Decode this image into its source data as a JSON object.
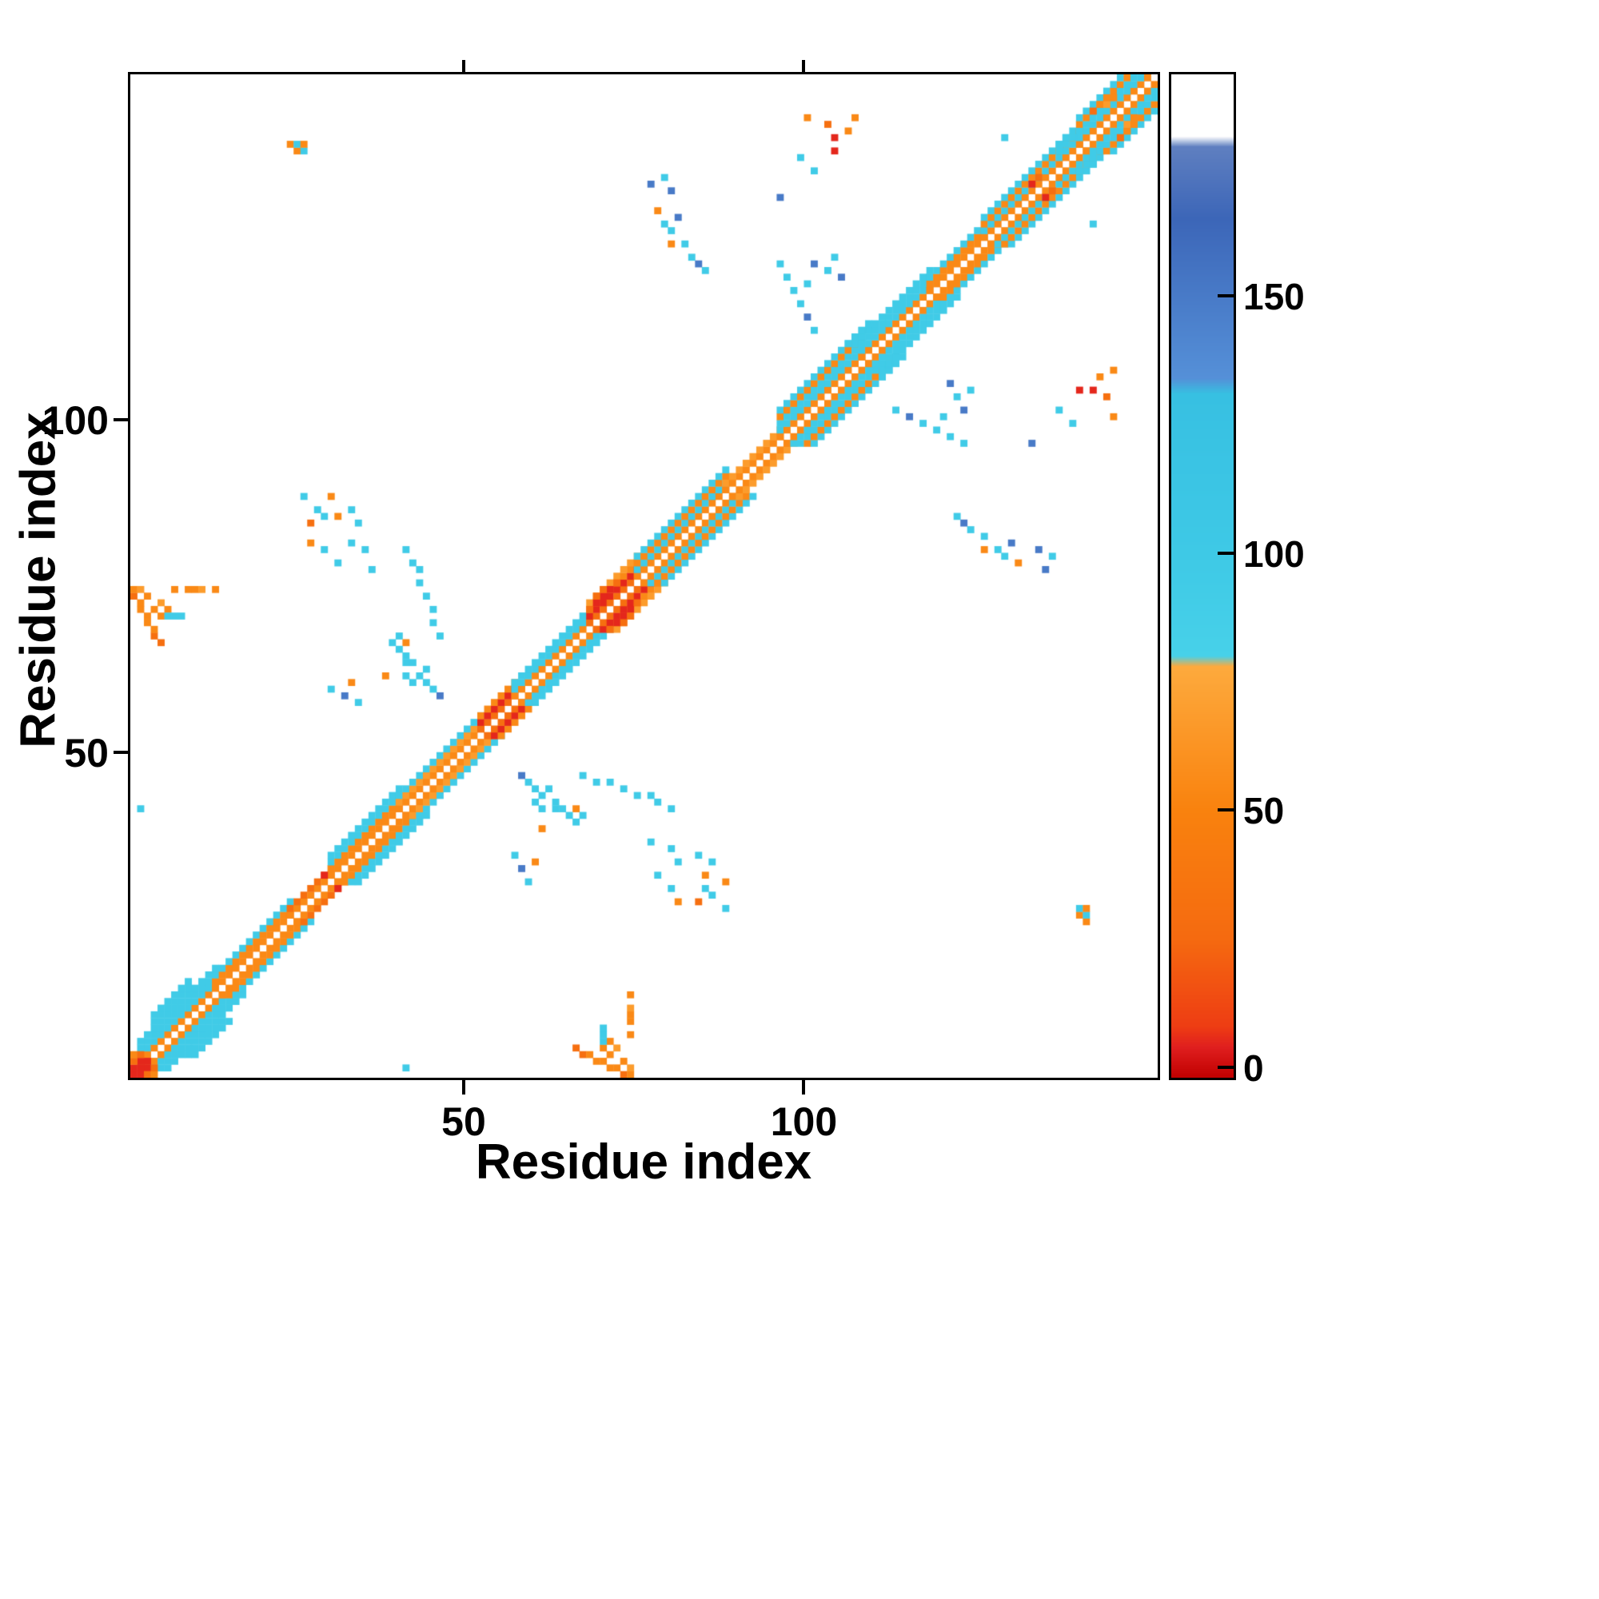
{
  "chart_data": {
    "type": "heatmap",
    "title": "",
    "xlabel": "Residue index",
    "ylabel": "Residue index",
    "x_range": [
      1,
      152
    ],
    "y_range": [
      1,
      152
    ],
    "x_ticks": [
      50,
      100
    ],
    "y_ticks": [
      50,
      100
    ],
    "n_residues": 151,
    "symmetric": true,
    "grid": false,
    "legend": "colorbar-right",
    "colorbar": {
      "ticks": [
        0,
        50,
        100,
        150
      ],
      "range": [
        -2,
        193
      ],
      "stops": [
        [
          -2,
          "#c00000"
        ],
        [
          4,
          "#e01f1f"
        ],
        [
          8,
          "#ee3d13"
        ],
        [
          25,
          "#f56a10"
        ],
        [
          50,
          "#f9820e"
        ],
        [
          78,
          "#fdaa3d"
        ],
        [
          80,
          "#47d1e9"
        ],
        [
          100,
          "#3ec9e6"
        ],
        [
          131,
          "#37c0e2"
        ],
        [
          134,
          "#5590d8"
        ],
        [
          165,
          "#3c66b8"
        ],
        [
          179,
          "#5f7fc0"
        ],
        [
          181,
          "#ffffff"
        ],
        [
          193,
          "#ffffff"
        ]
      ]
    },
    "diagonal_segments": [
      {
        "from": 2,
        "to": 13,
        "bands": [
          [
            1,
            55
          ],
          [
            2,
            95
          ],
          [
            3,
            95
          ],
          [
            4,
            95
          ]
        ]
      },
      {
        "from": 4,
        "to": 9,
        "bands": [
          [
            5,
            95
          ],
          [
            6,
            95
          ]
        ]
      },
      {
        "from": 13,
        "to": 24,
        "bands": [
          [
            1,
            55
          ],
          [
            2,
            55
          ],
          [
            3,
            95
          ]
        ]
      },
      {
        "from": 24,
        "to": 30,
        "bands": [
          [
            1,
            55
          ],
          [
            2,
            30
          ]
        ]
      },
      {
        "from": 30,
        "to": 40,
        "bands": [
          [
            1,
            55
          ],
          [
            2,
            55
          ],
          [
            3,
            95
          ],
          [
            4,
            95
          ]
        ]
      },
      {
        "from": 40,
        "to": 52,
        "bands": [
          [
            1,
            55
          ],
          [
            2,
            68
          ],
          [
            3,
            95
          ]
        ]
      },
      {
        "from": 52,
        "to": 57,
        "bands": [
          [
            1,
            30
          ],
          [
            2,
            5
          ],
          [
            3,
            55
          ]
        ]
      },
      {
        "from": 57,
        "to": 68,
        "bands": [
          [
            1,
            55
          ],
          [
            2,
            95
          ],
          [
            3,
            95
          ]
        ]
      },
      {
        "from": 68,
        "to": 75,
        "bands": [
          [
            1,
            30
          ],
          [
            2,
            5
          ],
          [
            3,
            55
          ],
          [
            4,
            68
          ]
        ]
      },
      {
        "from": 75,
        "to": 88,
        "bands": [
          [
            1,
            55
          ],
          [
            2,
            95
          ],
          [
            3,
            55
          ],
          [
            4,
            95
          ]
        ]
      },
      {
        "from": 88,
        "to": 96,
        "bands": [
          [
            1,
            55
          ],
          [
            2,
            68
          ]
        ]
      },
      {
        "from": 96,
        "to": 108,
        "bands": [
          [
            1,
            55
          ],
          [
            2,
            95
          ],
          [
            3,
            95
          ],
          [
            4,
            55
          ],
          [
            5,
            95
          ]
        ]
      },
      {
        "from": 108,
        "to": 118,
        "bands": [
          [
            1,
            55
          ],
          [
            2,
            95
          ],
          [
            3,
            95
          ],
          [
            4,
            95
          ]
        ]
      },
      {
        "from": 118,
        "to": 126,
        "bands": [
          [
            1,
            55
          ],
          [
            2,
            55
          ],
          [
            3,
            95
          ]
        ]
      },
      {
        "from": 126,
        "to": 140,
        "bands": [
          [
            1,
            55
          ],
          [
            2,
            95
          ],
          [
            3,
            55
          ],
          [
            4,
            95
          ]
        ]
      },
      {
        "from": 140,
        "to": 150,
        "bands": [
          [
            1,
            55
          ],
          [
            2,
            95
          ],
          [
            3,
            95
          ],
          [
            4,
            55
          ],
          [
            5,
            95
          ]
        ]
      }
    ],
    "cells": [
      [
        1,
        1,
        5
      ],
      [
        2,
        2,
        5
      ],
      [
        3,
        3,
        5
      ],
      [
        1,
        2,
        5
      ],
      [
        2,
        3,
        5
      ],
      [
        1,
        3,
        30
      ],
      [
        1,
        4,
        55
      ],
      [
        2,
        4,
        30
      ],
      [
        68,
        71,
        30
      ],
      [
        69,
        72,
        5
      ],
      [
        70,
        73,
        5
      ],
      [
        69,
        73,
        30
      ],
      [
        71,
        74,
        5
      ],
      [
        70,
        74,
        30
      ],
      [
        72,
        75,
        30
      ],
      [
        133,
        135,
        5
      ],
      [
        134,
        136,
        30
      ],
      [
        29,
        31,
        5
      ],
      [
        106,
        111,
        95
      ],
      [
        107,
        111,
        95
      ],
      [
        107,
        112,
        95
      ],
      [
        108,
        112,
        95
      ],
      [
        108,
        113,
        95
      ],
      [
        109,
        113,
        95
      ],
      [
        109,
        114,
        95
      ],
      [
        137,
        140,
        95
      ],
      [
        137,
        141,
        95
      ],
      [
        138,
        141,
        95
      ],
      [
        138,
        142,
        95
      ],
      [
        139,
        142,
        95
      ],
      [
        142,
        146,
        30
      ],
      [
        143,
        147,
        55
      ],
      [
        144,
        147,
        68
      ],
      [
        144,
        148,
        55
      ],
      [
        145,
        148,
        55
      ],
      [
        24,
        141,
        55
      ],
      [
        25,
        140,
        55
      ],
      [
        25,
        141,
        95
      ],
      [
        26,
        140,
        95
      ],
      [
        26,
        141,
        55
      ],
      [
        96,
        133,
        150
      ],
      [
        99,
        139,
        95
      ],
      [
        100,
        145,
        55
      ],
      [
        101,
        137,
        95
      ],
      [
        103,
        144,
        30
      ],
      [
        104,
        140,
        5
      ],
      [
        104,
        142,
        5
      ],
      [
        106,
        143,
        55
      ],
      [
        107,
        145,
        55
      ],
      [
        78,
        131,
        55
      ],
      [
        79,
        129,
        95
      ],
      [
        80,
        126,
        55
      ],
      [
        80,
        128,
        95
      ],
      [
        81,
        130,
        150
      ],
      [
        82,
        126,
        95
      ],
      [
        83,
        124,
        95
      ],
      [
        84,
        123,
        150
      ],
      [
        85,
        122,
        95
      ],
      [
        96,
        123,
        95
      ],
      [
        97,
        121,
        95
      ],
      [
        98,
        119,
        95
      ],
      [
        99,
        117,
        95
      ],
      [
        100,
        115,
        150
      ],
      [
        101,
        113,
        95
      ],
      [
        100,
        120,
        95
      ],
      [
        101,
        123,
        150
      ],
      [
        103,
        122,
        95
      ],
      [
        104,
        124,
        95
      ],
      [
        105,
        121,
        150
      ],
      [
        77,
        135,
        150
      ],
      [
        79,
        136,
        95
      ],
      [
        80,
        134,
        150
      ],
      [
        129,
        142,
        95
      ],
      [
        1,
        73,
        30
      ],
      [
        1,
        74,
        55
      ],
      [
        2,
        71,
        55
      ],
      [
        2,
        72,
        55
      ],
      [
        2,
        74,
        68
      ],
      [
        3,
        69,
        55
      ],
      [
        3,
        70,
        55
      ],
      [
        3,
        73,
        55
      ],
      [
        4,
        67,
        30
      ],
      [
        4,
        68,
        55
      ],
      [
        4,
        71,
        55
      ],
      [
        5,
        66,
        30
      ],
      [
        5,
        70,
        55
      ],
      [
        5,
        72,
        68
      ],
      [
        6,
        71,
        55
      ],
      [
        6,
        70,
        95
      ],
      [
        7,
        70,
        95
      ],
      [
        8,
        70,
        95
      ],
      [
        7,
        74,
        55
      ],
      [
        9,
        74,
        55
      ],
      [
        10,
        74,
        55
      ],
      [
        11,
        74,
        68
      ],
      [
        13,
        74,
        55
      ],
      [
        26,
        88,
        95
      ],
      [
        27,
        81,
        55
      ],
      [
        27,
        84,
        30
      ],
      [
        28,
        86,
        95
      ],
      [
        29,
        80,
        95
      ],
      [
        29,
        85,
        95
      ],
      [
        30,
        88,
        55
      ],
      [
        31,
        78,
        95
      ],
      [
        31,
        85,
        55
      ],
      [
        33,
        81,
        95
      ],
      [
        33,
        86,
        95
      ],
      [
        34,
        84,
        95
      ],
      [
        35,
        80,
        95
      ],
      [
        36,
        77,
        95
      ],
      [
        41,
        80,
        95
      ],
      [
        42,
        78,
        95
      ],
      [
        43,
        77,
        95
      ],
      [
        43,
        75,
        95
      ],
      [
        44,
        73,
        95
      ],
      [
        45,
        71,
        95
      ],
      [
        45,
        69,
        95
      ],
      [
        46,
        67,
        95
      ],
      [
        40,
        67,
        95
      ],
      [
        41,
        66,
        55
      ],
      [
        41,
        63,
        95
      ],
      [
        41,
        61,
        95
      ],
      [
        38,
        61,
        55
      ],
      [
        39,
        66,
        95
      ],
      [
        40,
        65,
        95
      ],
      [
        41,
        64,
        95
      ],
      [
        42,
        60,
        95
      ],
      [
        42,
        63,
        95
      ],
      [
        43,
        61,
        95
      ],
      [
        44,
        60,
        95
      ],
      [
        44,
        62,
        95
      ],
      [
        45,
        59,
        95
      ],
      [
        46,
        58,
        150
      ],
      [
        30,
        59,
        95
      ],
      [
        32,
        58,
        150
      ],
      [
        33,
        60,
        55
      ],
      [
        34,
        57,
        95
      ],
      [
        2,
        41,
        95
      ]
    ]
  }
}
